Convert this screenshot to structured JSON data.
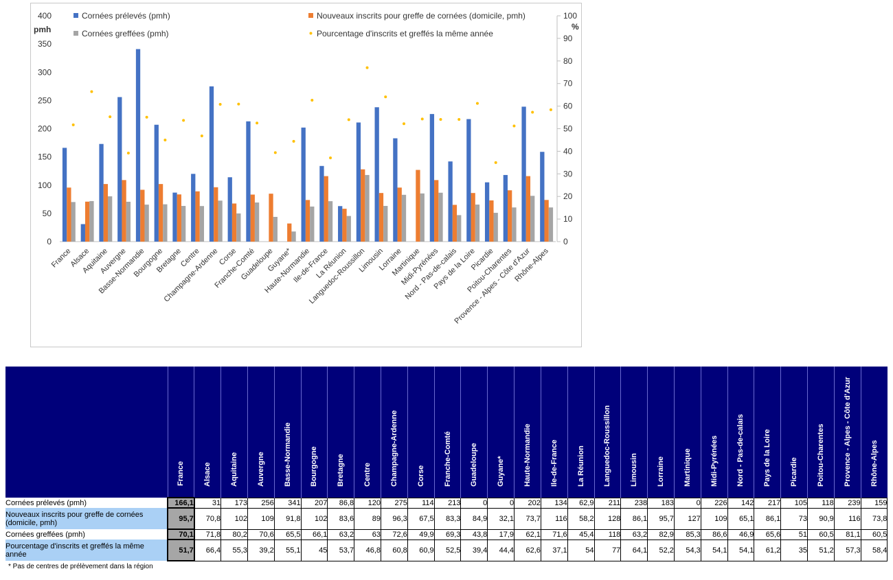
{
  "chart_data": {
    "type": "bar",
    "categories": [
      "France",
      "Alsace",
      "Aquitaine",
      "Auvergne",
      "Basse-Normandie",
      "Bourgogne",
      "Bretagne",
      "Centre",
      "Champagne-Ardenne",
      "Corse",
      "Franche-Comté",
      "Guadeloupe",
      "Guyane*",
      "Haute-Normandie",
      "Ile-de-France",
      "La Réunion",
      "Languedoc-Roussillon",
      "Limousin",
      "Lorraine",
      "Martinique",
      "Midi-Pyrénées",
      "Nord - Pas-de-calais",
      "Pays de la Loire",
      "Picardie",
      "Poitou-Charentes",
      "Provence - Alpes - Côte d'Azur",
      "Rhône-Alpes"
    ],
    "series": [
      {
        "name": "Cornées prélevés (pmh)",
        "type": "bar",
        "axis": "left",
        "color": "#4472c4",
        "values": [
          166.1,
          31,
          173,
          256,
          341,
          207,
          86.8,
          120,
          275,
          114,
          213,
          0,
          0,
          202,
          134,
          62.9,
          211,
          238,
          183,
          0,
          226,
          142,
          217,
          105,
          118,
          239,
          159
        ]
      },
      {
        "name": "Nouveaux inscrits pour greffe de cornées (domicile, pmh)",
        "type": "bar",
        "axis": "left",
        "color": "#ed7d31",
        "values": [
          95.7,
          70.8,
          102,
          109,
          91.8,
          102,
          83.6,
          89,
          96.3,
          67.5,
          83.3,
          84.9,
          32.1,
          73.7,
          116,
          58.2,
          128,
          86.1,
          95.7,
          127,
          109,
          65.1,
          86.1,
          73,
          90.9,
          116,
          73.8
        ]
      },
      {
        "name": "Cornées greffées (pmh)",
        "type": "bar",
        "axis": "left",
        "color": "#a5a5a5",
        "values": [
          70.1,
          71.8,
          80.2,
          70.6,
          65.5,
          66.1,
          63.2,
          63,
          72.6,
          49.9,
          69.3,
          43.8,
          17.9,
          62.1,
          71.6,
          45.4,
          118,
          63.2,
          82.9,
          85.3,
          86.6,
          46.9,
          65.6,
          51,
          60.5,
          81.1,
          60.5
        ]
      },
      {
        "name": "Pourcentage d'inscrits et greffés la même année",
        "type": "scatter",
        "axis": "right",
        "color": "#ffc000",
        "values": [
          51.7,
          66.4,
          55.3,
          39.2,
          55.1,
          45,
          53.7,
          46.8,
          60.8,
          60.9,
          52.5,
          39.4,
          44.4,
          62.6,
          37.1,
          54,
          77,
          64.1,
          52.2,
          54.3,
          54.1,
          54.1,
          61.2,
          35,
          51.2,
          57.3,
          58.4
        ]
      }
    ],
    "ylim": [
      0,
      400
    ],
    "y2lim": [
      0,
      100
    ],
    "yticks": [
      "0",
      "50",
      "100",
      "150",
      "200",
      "250",
      "300",
      "350",
      "400"
    ],
    "y2ticks": [
      "0",
      "10",
      "20",
      "30",
      "40",
      "50",
      "60",
      "70",
      "80",
      "90",
      "100"
    ],
    "ylabel": "pmh",
    "y2label": "%",
    "legend_position": "top",
    "grid": false
  },
  "table": {
    "columns": [
      "France",
      "Alsace",
      "Aquitaine",
      "Auvergne",
      "Basse-Normandie",
      "Bourgogne",
      "Bretagne",
      "Centre",
      "Champagne-Ardenne",
      "Corse",
      "Franche-Comté",
      "Guadeloupe",
      "Guyane*",
      "Haute-Normandie",
      "Ile-de-France",
      "La Réunion",
      "Languedoc-Roussillon",
      "Limousin",
      "Lorraine",
      "Martinique",
      "Midi-Pyrénées",
      "Nord - Pas-de-calais",
      "Pays de la Loire",
      "Picardie",
      "Poitou-Charentes",
      "Provence - Alpes - Côte d'Azur",
      "Rhône-Alpes"
    ],
    "rows": [
      {
        "label": "Cornées prélevés (pmh)",
        "highlight": false,
        "values": [
          "166,1",
          "31",
          "173",
          "256",
          "341",
          "207",
          "86,8",
          "120",
          "275",
          "114",
          "213",
          "0",
          "0",
          "202",
          "134",
          "62,9",
          "211",
          "238",
          "183",
          "0",
          "226",
          "142",
          "217",
          "105",
          "118",
          "239",
          "159"
        ]
      },
      {
        "label": "Nouveaux inscrits pour greffe de cornées (domicile, pmh)",
        "highlight": true,
        "values": [
          "95,7",
          "70,8",
          "102",
          "109",
          "91,8",
          "102",
          "83,6",
          "89",
          "96,3",
          "67,5",
          "83,3",
          "84,9",
          "32,1",
          "73,7",
          "116",
          "58,2",
          "128",
          "86,1",
          "95,7",
          "127",
          "109",
          "65,1",
          "86,1",
          "73",
          "90,9",
          "116",
          "73,8"
        ]
      },
      {
        "label": "Cornées greffées (pmh)",
        "highlight": false,
        "values": [
          "70,1",
          "71,8",
          "80,2",
          "70,6",
          "65,5",
          "66,1",
          "63,2",
          "63",
          "72,6",
          "49,9",
          "69,3",
          "43,8",
          "17,9",
          "62,1",
          "71,6",
          "45,4",
          "118",
          "63,2",
          "82,9",
          "85,3",
          "86,6",
          "46,9",
          "65,6",
          "51",
          "60,5",
          "81,1",
          "60,5"
        ]
      },
      {
        "label": "Pourcentage d'inscrits et greffés la même année",
        "highlight": true,
        "values": [
          "51,7",
          "66,4",
          "55,3",
          "39,2",
          "55,1",
          "45",
          "53,7",
          "46,8",
          "60,8",
          "60,9",
          "52,5",
          "39,4",
          "44,4",
          "62,6",
          "37,1",
          "54",
          "77",
          "64,1",
          "52,2",
          "54,3",
          "54,1",
          "54,1",
          "61,2",
          "35",
          "51,2",
          "57,3",
          "58,4"
        ]
      }
    ]
  },
  "footnote": "* Pas de centres de prélèvement dans la région"
}
